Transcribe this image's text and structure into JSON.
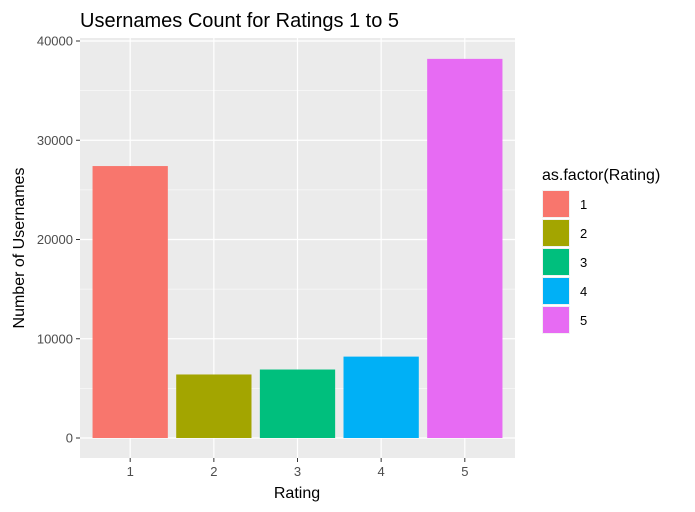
{
  "chart_data": {
    "type": "bar",
    "title": "Usernames Count for Ratings 1 to 5",
    "xlabel": "Rating",
    "ylabel": "Number of Usernames",
    "categories": [
      "1",
      "2",
      "3",
      "4",
      "5"
    ],
    "values": [
      27400,
      6400,
      6900,
      8200,
      38200
    ],
    "ylim": [
      0,
      41000
    ],
    "yticks": [
      0,
      10000,
      20000,
      30000,
      40000
    ],
    "ytick_labels": [
      "0",
      "10000",
      "20000",
      "30000",
      "40000"
    ],
    "grid": true,
    "legend": {
      "title": "as.factor(Rating)",
      "position": "right",
      "items": [
        "1",
        "2",
        "3",
        "4",
        "5"
      ]
    },
    "colors": [
      "#F8766D",
      "#A3A500",
      "#00BF7D",
      "#00B0F6",
      "#E76BF3"
    ],
    "panel_background": "#EBEBEB",
    "gridline_color": "#FFFFFF"
  }
}
